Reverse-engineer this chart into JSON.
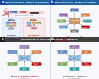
{
  "background_color": "#ffffff",
  "top_header_bg": "#2060a0",
  "top_header_text": "Replication fork / BRCA1 inactivation",
  "top_header_text_right": "Replication fork / RAD51 activation",
  "top_header_text_color": "#ffffff",
  "bottom_header_bg": "#404040",
  "bottom_header_text": "Mechanisms of resistance to PARPi — signaling",
  "bottom_header_text_color": "#ffffff",
  "panel_a_bg": "#f8f8ff",
  "panel_b_bg": "#f8f8ff",
  "panel_c_bg": "#f8f8ff",
  "panel_d_bg": "#f8f8ff",
  "panel_a_letter_bg": "#2060a0",
  "panel_b_letter_bg": "#2060a0",
  "panel_c_letter_bg": "#404040",
  "panel_d_letter_bg": "#404040",
  "pink_bar": "#f8c8c8",
  "dna_arrow_color": "#c06060",
  "panel_a_sub1_bg": "#d0e8f8",
  "panel_a_sub2_bg": "#f4cccc",
  "panel_b_center_bg": "#f0c080",
  "panel_b_center_ec": "#c08040",
  "node_purple": "#9060a0",
  "node_orange": "#e07830",
  "node_blue": "#4472c4",
  "node_green": "#70ad47",
  "node_red": "#c00000",
  "node_teal": "#20a0a0",
  "node_gray": "#808080",
  "node_light_blue": "#5b9bd5",
  "arrow_gray": "#808080",
  "arrow_red": "#c00000",
  "arrow_dark": "#404040",
  "panel_c_center_bg": "#a0d0f8",
  "panel_d_center_bg": "#a0d0f8",
  "divider_color": "#cccccc",
  "label_red": "#c00000",
  "label_dark": "#303030",
  "label_blue_dark": "#1f3864"
}
